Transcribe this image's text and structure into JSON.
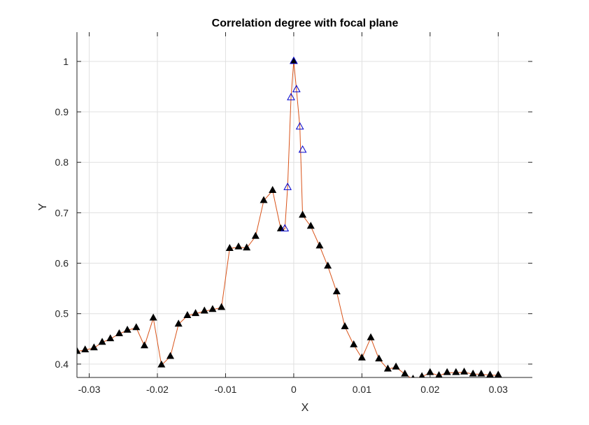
{
  "chart_data": {
    "type": "line",
    "title": "Correlation degree with focal plane",
    "xlabel": "X",
    "ylabel": "Y",
    "xlim": [
      -0.0318,
      0.035
    ],
    "ylim": [
      0.3735,
      1.058
    ],
    "xticks": [
      -0.03,
      -0.02,
      -0.01,
      0,
      0.01,
      0.02,
      0.03
    ],
    "xtick_labels": [
      "-0.03",
      "-0.02",
      "-0.01",
      "0",
      "0.01",
      "0.02",
      "0.03"
    ],
    "yticks": [
      0.4,
      0.5,
      0.6,
      0.7,
      0.8,
      0.9,
      1.0
    ],
    "ytick_labels": [
      "0.4",
      "0.5",
      "0.6",
      "0.7",
      "0.8",
      "0.9",
      "1"
    ],
    "grid": true,
    "colors": {
      "line": "#D95319",
      "coarse_marker_fill": "#000000",
      "fine_marker_stroke": "#0000CC",
      "grid": "#E0E0E0",
      "axis": "#262626"
    },
    "series": [
      {
        "marker": "filled-triangle",
        "x": [
          -0.0318,
          -0.0306,
          -0.0293,
          -0.0281,
          -0.0269,
          -0.0256,
          -0.0244,
          -0.0231,
          -0.0219,
          -0.0206,
          -0.0194,
          -0.0181,
          -0.0169,
          -0.0156,
          -0.0144,
          -0.0131,
          -0.0119,
          -0.0106,
          -0.0094,
          -0.0081,
          -0.0069,
          -0.0056,
          -0.0044,
          -0.0031,
          -0.0019,
          0.0,
          0.0013,
          0.0025,
          0.0038,
          0.005,
          0.0063,
          0.0075,
          0.0088,
          0.01,
          0.0113,
          0.0125,
          0.0138,
          0.015,
          0.0163,
          0.0175,
          0.0188,
          0.02,
          0.0213,
          0.0225,
          0.0238,
          0.025,
          0.0263,
          0.0275,
          0.0288,
          0.03
        ],
        "y": [
          0.425,
          0.428,
          0.432,
          0.443,
          0.45,
          0.46,
          0.467,
          0.472,
          0.436,
          0.491,
          0.398,
          0.415,
          0.479,
          0.496,
          0.5,
          0.505,
          0.508,
          0.512,
          0.629,
          0.632,
          0.63,
          0.653,
          0.724,
          0.744,
          0.668,
          1.0,
          0.695,
          0.673,
          0.634,
          0.594,
          0.543,
          0.474,
          0.438,
          0.412,
          0.452,
          0.41,
          0.39,
          0.394,
          0.38,
          0.37,
          0.375,
          0.383,
          0.377,
          0.383,
          0.383,
          0.384,
          0.38,
          0.38,
          0.378,
          0.378
        ]
      },
      {
        "marker": "hollow-triangle",
        "x": [
          -0.0013,
          -0.0009,
          -0.0004,
          0.0,
          0.0004,
          0.0009,
          0.0013
        ],
        "y": [
          0.668,
          0.75,
          0.928,
          1.0,
          0.944,
          0.87,
          0.824
        ]
      }
    ]
  }
}
